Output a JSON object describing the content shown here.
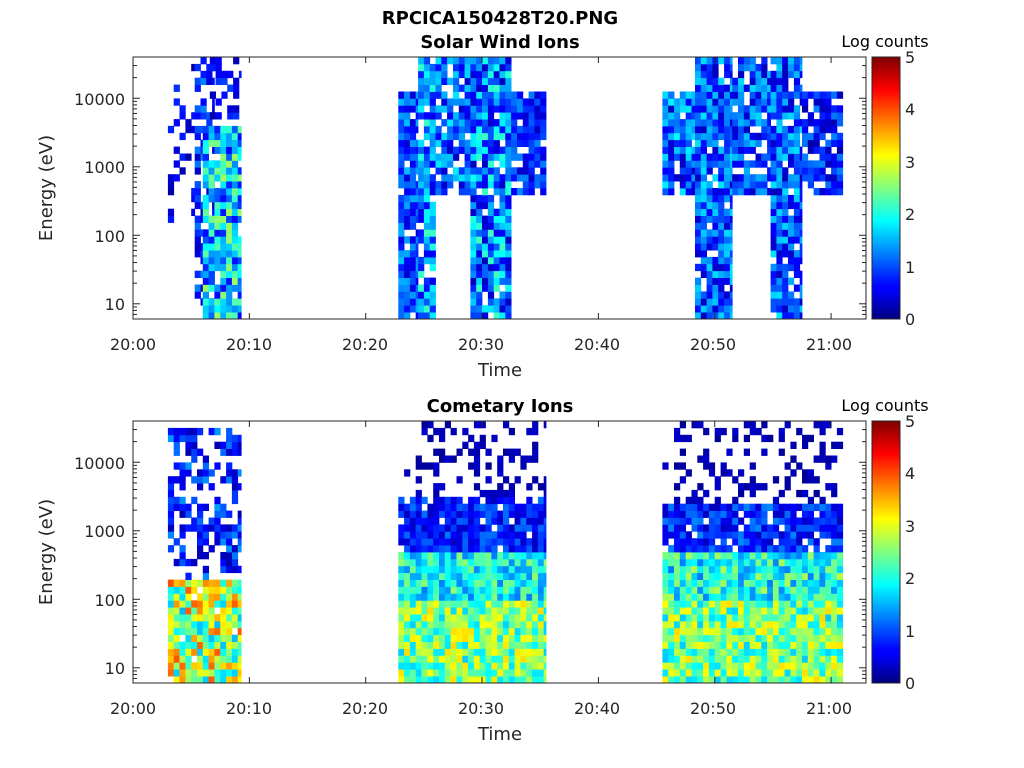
{
  "figure_title": "RPCICA150428T20.PNG",
  "chart_data": [
    {
      "type": "heatmap",
      "title": "Solar Wind Ions",
      "xlabel": "Time",
      "ylabel": "Energy (eV)",
      "x_ticks": [
        "20:00",
        "20:10",
        "20:20",
        "20:30",
        "20:40",
        "20:50",
        "21:00"
      ],
      "y_ticks": [
        "10",
        "100",
        "1000",
        "10000"
      ],
      "y_scale": "log",
      "x_range_minutes_after_20_00": [
        0,
        63
      ],
      "y_range_eV": [
        6,
        40000
      ],
      "colorbar": {
        "label": "Log counts",
        "ticks": [
          "0",
          "1",
          "2",
          "3",
          "4",
          "5"
        ],
        "range": [
          0,
          5
        ],
        "colormap": "jet"
      },
      "bands": [
        {
          "t0": 3.0,
          "t1": 5.3,
          "emin": 150,
          "emax": 30000,
          "density": 0.22,
          "vlo": 0.2,
          "vhi": 0.9
        },
        {
          "t0": 5.3,
          "t1": 7.0,
          "emin": 6,
          "emax": 40000,
          "density": 0.55,
          "vlo": 0.3,
          "vhi": 1.3
        },
        {
          "t0": 6.0,
          "t1": 9.3,
          "emin": 6,
          "emax": 4000,
          "density": 0.95,
          "vlo": 0.6,
          "vhi": 2.7
        },
        {
          "t0": 6.6,
          "t1": 9.3,
          "emin": 4000,
          "emax": 40000,
          "density": 0.45,
          "vlo": 0.2,
          "vhi": 1.0
        },
        {
          "t0": 22.8,
          "t1": 24.5,
          "emin": 6,
          "emax": 14000,
          "density": 0.92,
          "vlo": 0.4,
          "vhi": 1.6
        },
        {
          "t0": 24.5,
          "t1": 26.0,
          "emin": 6,
          "emax": 40000,
          "density": 0.9,
          "vlo": 0.4,
          "vhi": 2.2
        },
        {
          "t0": 26.0,
          "t1": 29.0,
          "emin": 350,
          "emax": 40000,
          "density": 0.8,
          "vlo": 0.3,
          "vhi": 1.8
        },
        {
          "t0": 29.0,
          "t1": 32.5,
          "emin": 6,
          "emax": 40000,
          "density": 0.95,
          "vlo": 0.3,
          "vhi": 2.2
        },
        {
          "t0": 32.5,
          "t1": 35.5,
          "emin": 350,
          "emax": 12000,
          "density": 0.85,
          "vlo": 0.3,
          "vhi": 1.3
        },
        {
          "t0": 45.5,
          "t1": 48.3,
          "emin": 350,
          "emax": 14000,
          "density": 0.85,
          "vlo": 0.3,
          "vhi": 1.9
        },
        {
          "t0": 48.3,
          "t1": 51.5,
          "emin": 6,
          "emax": 40000,
          "density": 0.92,
          "vlo": 0.3,
          "vhi": 1.8
        },
        {
          "t0": 51.5,
          "t1": 54.8,
          "emin": 350,
          "emax": 40000,
          "density": 0.85,
          "vlo": 0.3,
          "vhi": 1.7
        },
        {
          "t0": 54.8,
          "t1": 57.5,
          "emin": 6,
          "emax": 40000,
          "density": 0.92,
          "vlo": 0.3,
          "vhi": 1.8
        },
        {
          "t0": 57.5,
          "t1": 61.0,
          "emin": 350,
          "emax": 14000,
          "density": 0.8,
          "vlo": 0.2,
          "vhi": 1.3
        }
      ]
    },
    {
      "type": "heatmap",
      "title": "Cometary Ions",
      "xlabel": "Time",
      "ylabel": "Energy (eV)",
      "x_ticks": [
        "20:00",
        "20:10",
        "20:20",
        "20:30",
        "20:40",
        "20:50",
        "21:00"
      ],
      "y_ticks": [
        "10",
        "100",
        "1000",
        "10000"
      ],
      "y_scale": "log",
      "x_range_minutes_after_20_00": [
        0,
        63
      ],
      "y_range_eV": [
        6,
        40000
      ],
      "colorbar": {
        "label": "Log counts",
        "ticks": [
          "0",
          "1",
          "2",
          "3",
          "4",
          "5"
        ],
        "range": [
          0,
          5
        ],
        "colormap": "jet"
      },
      "bands": [
        {
          "t0": 3.0,
          "t1": 9.3,
          "emin": 6,
          "emax": 200,
          "density": 0.95,
          "vlo": 1.5,
          "vhi": 4.0
        },
        {
          "t0": 3.0,
          "t1": 9.3,
          "emin": 200,
          "emax": 30000,
          "density": 0.5,
          "vlo": 0.2,
          "vhi": 1.4
        },
        {
          "t0": 22.8,
          "t1": 35.5,
          "emin": 6,
          "emax": 100,
          "density": 1.0,
          "vlo": 1.6,
          "vhi": 3.3
        },
        {
          "t0": 22.8,
          "t1": 35.5,
          "emin": 100,
          "emax": 500,
          "density": 1.0,
          "vlo": 1.2,
          "vhi": 2.6
        },
        {
          "t0": 22.8,
          "t1": 35.5,
          "emin": 500,
          "emax": 3000,
          "density": 0.9,
          "vlo": 0.3,
          "vhi": 1.2
        },
        {
          "t0": 22.8,
          "t1": 35.5,
          "emin": 3000,
          "emax": 40000,
          "density": 0.3,
          "vlo": 0.1,
          "vhi": 0.4
        },
        {
          "t0": 45.5,
          "t1": 61.0,
          "emin": 6,
          "emax": 100,
          "density": 1.0,
          "vlo": 1.6,
          "vhi": 3.3
        },
        {
          "t0": 45.5,
          "t1": 61.0,
          "emin": 100,
          "emax": 500,
          "density": 1.0,
          "vlo": 1.2,
          "vhi": 2.8
        },
        {
          "t0": 45.5,
          "t1": 61.0,
          "emin": 500,
          "emax": 2500,
          "density": 0.9,
          "vlo": 0.3,
          "vhi": 1.3
        },
        {
          "t0": 45.5,
          "t1": 61.0,
          "emin": 2500,
          "emax": 40000,
          "density": 0.3,
          "vlo": 0.1,
          "vhi": 0.4
        }
      ]
    }
  ]
}
